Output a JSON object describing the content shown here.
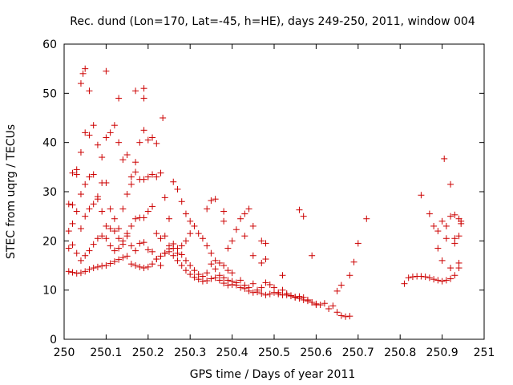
{
  "chart_data": {
    "type": "scatter",
    "title": "Rec. dund (Lon=170, Lat=-45, h=HE), days 249-250, 2011, window 004",
    "xlabel": "GPS time / Days of year 2011",
    "ylabel": "STEC from uqrg / TECUs",
    "xlim": [
      250,
      251
    ],
    "ylim": [
      0,
      60
    ],
    "xticks": [
      250,
      250.1,
      250.2,
      250.3,
      250.4,
      250.5,
      250.6,
      250.7,
      250.8,
      250.9,
      251
    ],
    "xtick_labels": [
      "250",
      "250.1",
      "250.2",
      "250.3",
      "250.4",
      "250.5",
      "250.6",
      "250.7",
      "250.8",
      "250.9",
      "251"
    ],
    "yticks": [
      0,
      10,
      20,
      30,
      40,
      50,
      60
    ],
    "ytick_labels": [
      "0",
      "10",
      "20",
      "30",
      "40",
      "50",
      "60"
    ],
    "grid": false,
    "marker": "+",
    "color": "#cc0000",
    "series": [
      {
        "name": "STEC",
        "points": [
          [
            250.011,
            13.8
          ],
          [
            250.02,
            13.6
          ],
          [
            250.03,
            13.4
          ],
          [
            250.04,
            13.5
          ],
          [
            250.05,
            13.8
          ],
          [
            250.06,
            14.2
          ],
          [
            250.07,
            14.5
          ],
          [
            250.08,
            14.7
          ],
          [
            250.09,
            14.9
          ],
          [
            250.1,
            15.0
          ],
          [
            250.11,
            15.4
          ],
          [
            250.12,
            15.8
          ],
          [
            250.13,
            16.2
          ],
          [
            250.14,
            16.6
          ],
          [
            250.15,
            16.9
          ],
          [
            250.16,
            15.3
          ],
          [
            250.17,
            15.0
          ],
          [
            250.18,
            14.7
          ],
          [
            250.19,
            14.5
          ],
          [
            250.2,
            14.7
          ],
          [
            250.21,
            15.3
          ],
          [
            250.22,
            16.3
          ],
          [
            250.23,
            16.9
          ],
          [
            250.24,
            17.5
          ],
          [
            250.25,
            17.8
          ],
          [
            250.26,
            17.0
          ],
          [
            250.27,
            16.0
          ],
          [
            250.28,
            15.0
          ],
          [
            250.29,
            14.0
          ],
          [
            250.3,
            13.2
          ],
          [
            250.31,
            12.6
          ],
          [
            250.32,
            12.2
          ],
          [
            250.33,
            11.8
          ],
          [
            250.34,
            11.9
          ],
          [
            250.35,
            12.3
          ],
          [
            250.36,
            12.5
          ],
          [
            250.37,
            12.0
          ],
          [
            250.38,
            11.4
          ],
          [
            250.39,
            11.0
          ],
          [
            250.4,
            11.1
          ],
          [
            250.41,
            11.0
          ],
          [
            250.42,
            10.5
          ],
          [
            250.43,
            10.3
          ],
          [
            250.44,
            9.8
          ],
          [
            250.45,
            9.5
          ],
          [
            250.46,
            9.6
          ],
          [
            250.47,
            9.3
          ],
          [
            250.48,
            9.0
          ],
          [
            250.49,
            9.2
          ],
          [
            250.5,
            9.5
          ],
          [
            250.51,
            9.2
          ],
          [
            250.52,
            9.0
          ],
          [
            250.53,
            9.3
          ],
          [
            250.54,
            8.9
          ],
          [
            250.55,
            8.6
          ],
          [
            250.56,
            8.3
          ],
          [
            250.57,
            8.0
          ],
          [
            250.58,
            7.8
          ],
          [
            250.59,
            7.5
          ],
          [
            250.6,
            7.2
          ],
          [
            250.61,
            7.0
          ],
          [
            250.62,
            7.3
          ],
          [
            250.63,
            6.2
          ],
          [
            250.64,
            6.8
          ],
          [
            250.65,
            5.5
          ],
          [
            250.66,
            4.8
          ],
          [
            250.67,
            4.6
          ],
          [
            250.68,
            4.7
          ],
          [
            250.011,
            18.5
          ],
          [
            250.02,
            19.2
          ],
          [
            250.03,
            17.5
          ],
          [
            250.04,
            16.0
          ],
          [
            250.05,
            17.0
          ],
          [
            250.06,
            18.0
          ],
          [
            250.07,
            19.3
          ],
          [
            250.08,
            20.5
          ],
          [
            250.09,
            21.0
          ],
          [
            250.1,
            20.5
          ],
          [
            250.11,
            19.0
          ],
          [
            250.12,
            18.0
          ],
          [
            250.13,
            18.5
          ],
          [
            250.14,
            19.3
          ],
          [
            250.15,
            21.0
          ],
          [
            250.16,
            19.0
          ],
          [
            250.17,
            18.0
          ],
          [
            250.18,
            19.5
          ],
          [
            250.19,
            19.7
          ],
          [
            250.2,
            18.2
          ],
          [
            250.21,
            17.8
          ],
          [
            250.22,
            16.3
          ],
          [
            250.23,
            15.0
          ],
          [
            250.24,
            17.5
          ],
          [
            250.25,
            18.4
          ],
          [
            250.26,
            19.4
          ],
          [
            250.27,
            18.5
          ],
          [
            250.28,
            17.2
          ],
          [
            250.29,
            16.0
          ],
          [
            250.3,
            15.0
          ],
          [
            250.31,
            14.0
          ],
          [
            250.32,
            13.2
          ],
          [
            250.33,
            12.8
          ],
          [
            250.34,
            13.5
          ],
          [
            250.35,
            15.3
          ],
          [
            250.36,
            14.3
          ],
          [
            250.37,
            13.0
          ],
          [
            250.38,
            12.5
          ],
          [
            250.39,
            12.0
          ],
          [
            250.4,
            11.8
          ],
          [
            250.41,
            11.5
          ],
          [
            250.42,
            12.0
          ],
          [
            250.43,
            11.0
          ],
          [
            250.44,
            10.5
          ],
          [
            250.45,
            11.3
          ],
          [
            250.46,
            10.0
          ],
          [
            250.47,
            10.5
          ],
          [
            250.48,
            11.5
          ],
          [
            250.49,
            11.1
          ],
          [
            250.5,
            10.5
          ],
          [
            250.51,
            9.5
          ],
          [
            250.52,
            10.0
          ],
          [
            250.53,
            9.0
          ],
          [
            250.54,
            8.8
          ],
          [
            250.55,
            8.5
          ],
          [
            250.56,
            8.7
          ],
          [
            250.57,
            8.5
          ],
          [
            250.58,
            8.0
          ],
          [
            250.59,
            7.5
          ],
          [
            250.6,
            7.0
          ],
          [
            250.011,
            22.0
          ],
          [
            250.02,
            23.5
          ],
          [
            250.03,
            26.0
          ],
          [
            250.04,
            22.5
          ],
          [
            250.05,
            25.0
          ],
          [
            250.06,
            26.5
          ],
          [
            250.07,
            27.5
          ],
          [
            250.08,
            28.5
          ],
          [
            250.09,
            26.0
          ],
          [
            250.1,
            23.0
          ],
          [
            250.11,
            22.5
          ],
          [
            250.12,
            22.0
          ],
          [
            250.13,
            20.5
          ],
          [
            250.14,
            20.0
          ],
          [
            250.15,
            21.5
          ],
          [
            250.16,
            23.0
          ],
          [
            250.17,
            24.5
          ],
          [
            250.18,
            24.7
          ],
          [
            250.19,
            24.7
          ],
          [
            250.2,
            26.0
          ],
          [
            250.21,
            27.0
          ],
          [
            250.22,
            21.5
          ],
          [
            250.23,
            20.5
          ],
          [
            250.24,
            21.0
          ],
          [
            250.25,
            19.0
          ],
          [
            250.26,
            18.5
          ],
          [
            250.27,
            17.5
          ],
          [
            250.28,
            19.0
          ],
          [
            250.29,
            20.0
          ],
          [
            250.3,
            21.5
          ],
          [
            250.31,
            23.0
          ],
          [
            250.32,
            21.5
          ],
          [
            250.33,
            20.5
          ],
          [
            250.34,
            19.0
          ],
          [
            250.35,
            17.5
          ],
          [
            250.36,
            16.0
          ],
          [
            250.37,
            15.5
          ],
          [
            250.38,
            15.0
          ],
          [
            250.39,
            14.0
          ],
          [
            250.4,
            13.5
          ],
          [
            250.011,
            27.5
          ],
          [
            250.02,
            27.3
          ],
          [
            250.03,
            33.5
          ],
          [
            250.04,
            29.5
          ],
          [
            250.05,
            31.5
          ],
          [
            250.06,
            33.0
          ],
          [
            250.07,
            33.5
          ],
          [
            250.08,
            29.0
          ],
          [
            250.09,
            31.8
          ],
          [
            250.1,
            31.8
          ],
          [
            250.11,
            26.5
          ],
          [
            250.12,
            24.5
          ],
          [
            250.13,
            22.5
          ],
          [
            250.14,
            26.5
          ],
          [
            250.15,
            29.5
          ],
          [
            250.16,
            31.5
          ],
          [
            250.17,
            34.0
          ],
          [
            250.18,
            32.5
          ],
          [
            250.19,
            32.5
          ],
          [
            250.2,
            33.0
          ],
          [
            250.21,
            33.5
          ],
          [
            250.22,
            33.0
          ],
          [
            250.23,
            33.8
          ],
          [
            250.24,
            28.8
          ],
          [
            250.25,
            24.5
          ],
          [
            250.26,
            32.0
          ],
          [
            250.27,
            30.5
          ],
          [
            250.28,
            28.0
          ],
          [
            250.29,
            25.5
          ],
          [
            250.3,
            24.0
          ],
          [
            250.02,
            33.8
          ],
          [
            250.03,
            34.5
          ],
          [
            250.04,
            38.0
          ],
          [
            250.05,
            42.0
          ],
          [
            250.06,
            41.5
          ],
          [
            250.07,
            43.5
          ],
          [
            250.08,
            39.5
          ],
          [
            250.09,
            37.0
          ],
          [
            250.1,
            41.0
          ],
          [
            250.11,
            42.0
          ],
          [
            250.12,
            43.5
          ],
          [
            250.13,
            40.0
          ],
          [
            250.14,
            36.5
          ],
          [
            250.15,
            37.5
          ],
          [
            250.16,
            33.0
          ],
          [
            250.17,
            36.0
          ],
          [
            250.18,
            40.0
          ],
          [
            250.19,
            42.5
          ],
          [
            250.2,
            40.5
          ],
          [
            250.21,
            41.0
          ],
          [
            250.22,
            39.8
          ],
          [
            250.235,
            45.0
          ],
          [
            250.04,
            52.0
          ],
          [
            250.045,
            54.0
          ],
          [
            250.05,
            55.0
          ],
          [
            250.06,
            50.5
          ],
          [
            250.1,
            54.5
          ],
          [
            250.13,
            49.0
          ],
          [
            250.17,
            50.5
          ],
          [
            250.19,
            51.0
          ],
          [
            250.19,
            49.0
          ],
          [
            250.36,
            28.5
          ],
          [
            250.35,
            28.2
          ],
          [
            250.34,
            26.5
          ],
          [
            250.38,
            26.0
          ],
          [
            250.38,
            24.0
          ],
          [
            250.41,
            22.3
          ],
          [
            250.42,
            24.5
          ],
          [
            250.43,
            25.5
          ],
          [
            250.44,
            26.5
          ],
          [
            250.45,
            23.0
          ],
          [
            250.47,
            20.0
          ],
          [
            250.48,
            19.5
          ],
          [
            250.4,
            20.0
          ],
          [
            250.39,
            18.5
          ],
          [
            250.43,
            21.0
          ],
          [
            250.45,
            17.0
          ],
          [
            250.47,
            15.5
          ],
          [
            250.48,
            16.3
          ],
          [
            250.52,
            13.0
          ],
          [
            250.56,
            26.3
          ],
          [
            250.57,
            25.0
          ],
          [
            250.59,
            17.0
          ],
          [
            250.65,
            9.8
          ],
          [
            250.66,
            11.0
          ],
          [
            250.68,
            13.0
          ],
          [
            250.69,
            15.7
          ],
          [
            250.7,
            19.5
          ],
          [
            250.72,
            24.5
          ],
          [
            250.81,
            11.3
          ],
          [
            250.82,
            12.5
          ],
          [
            250.83,
            12.7
          ],
          [
            250.84,
            12.8
          ],
          [
            250.85,
            12.8
          ],
          [
            250.86,
            12.7
          ],
          [
            250.87,
            12.5
          ],
          [
            250.88,
            12.2
          ],
          [
            250.89,
            12.0
          ],
          [
            250.9,
            11.8
          ],
          [
            250.91,
            12.0
          ],
          [
            250.92,
            12.3
          ],
          [
            250.93,
            13.0
          ],
          [
            250.94,
            14.5
          ],
          [
            250.94,
            15.5
          ],
          [
            250.85,
            29.3
          ],
          [
            250.87,
            25.5
          ],
          [
            250.88,
            23.0
          ],
          [
            250.89,
            22.0
          ],
          [
            250.9,
            24.0
          ],
          [
            250.91,
            23.0
          ],
          [
            250.92,
            25.0
          ],
          [
            250.93,
            25.3
          ],
          [
            250.94,
            24.5
          ],
          [
            250.945,
            24.0
          ],
          [
            250.9,
            16.0
          ],
          [
            250.905,
            36.7
          ],
          [
            250.92,
            31.5
          ],
          [
            250.91,
            20.5
          ],
          [
            250.93,
            19.5
          ],
          [
            250.94,
            21.0
          ],
          [
            250.93,
            20.5
          ],
          [
            250.92,
            14.5
          ],
          [
            250.89,
            18.5
          ],
          [
            250.945,
            23.5
          ]
        ]
      }
    ]
  }
}
